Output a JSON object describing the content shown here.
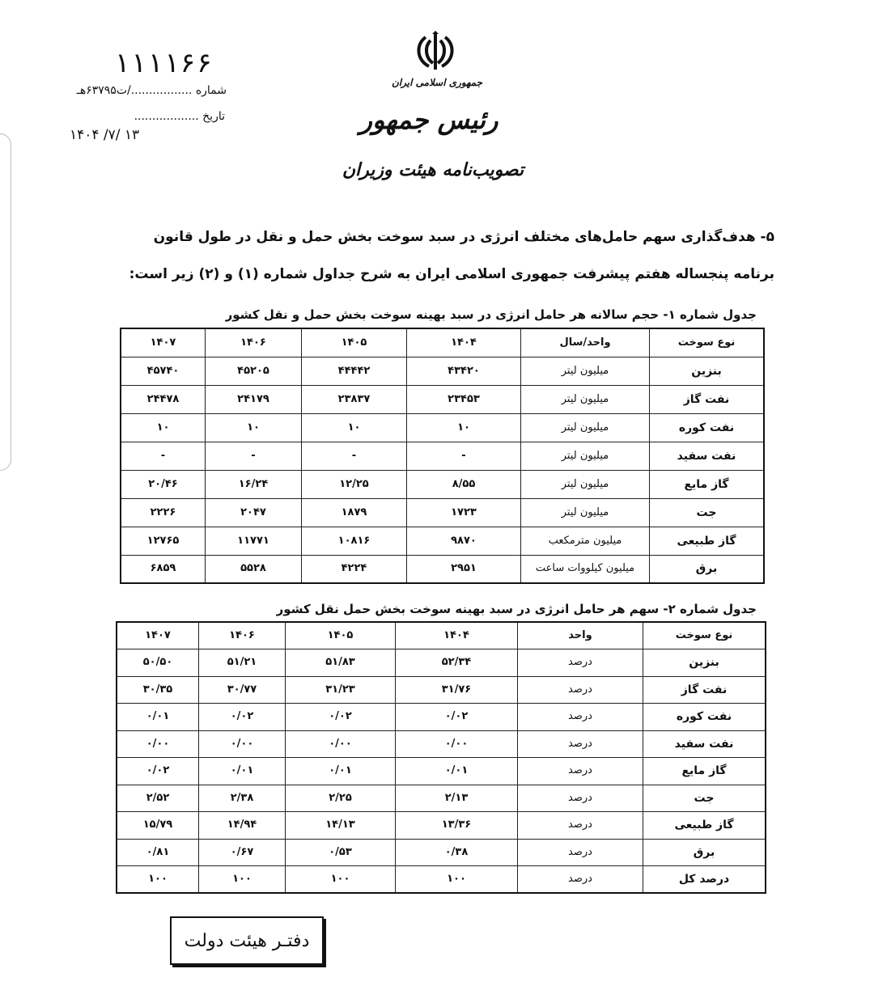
{
  "header": {
    "emblem": "Emblem of Iran",
    "line1": "جمهوری اسلامی ایران",
    "line2": "رئیس جمهور",
    "line3": "تصویب‌نامه هیئت وزیران",
    "number_handwritten": "۱۱۱۱۶۶",
    "number_label": "شماره ................./ت۶۳۷۹۵هـ",
    "date_label": "تاریخ ..................",
    "date_value": "۱۴۰۴ /۷/ ۱۳"
  },
  "body": {
    "para1": "۵- هدف‌گذاری سهم حامل‌های مختلف انرژی در سبد سوخت بخش حمل و نقل در طول قانون",
    "para2": "برنامه پنجساله هفتم پیشرفت جمهوری اسلامی ایران به شرح جداول شماره (۱) و (۲) زیر است:"
  },
  "table1": {
    "title": "جدول شماره ۱- حجم سالانه هر حامل انرژی در سبد بهینه سوخت بخش حمل و نقل کشور",
    "headers": [
      "نوع سوخت",
      "واحد/سال",
      "۱۴۰۴",
      "۱۴۰۵",
      "۱۴۰۶",
      "۱۴۰۷"
    ],
    "rows": [
      [
        "بنزین",
        "میلیون لیتر",
        "۴۳۴۲۰",
        "۴۴۴۴۲",
        "۴۵۲۰۵",
        "۴۵۷۴۰"
      ],
      [
        "نفت گاز",
        "میلیون لیتر",
        "۲۳۴۵۳",
        "۲۳۸۳۷",
        "۲۴۱۷۹",
        "۲۴۴۷۸"
      ],
      [
        "نفت کوره",
        "میلیون لیتر",
        "۱۰",
        "۱۰",
        "۱۰",
        "۱۰"
      ],
      [
        "نفت سفید",
        "میلیون لیتر",
        "-",
        "-",
        "-",
        "-"
      ],
      [
        "گاز مایع",
        "میلیون لیتر",
        "۸/۵۵",
        "۱۲/۲۵",
        "۱۶/۲۴",
        "۲۰/۴۶"
      ],
      [
        "جت",
        "میلیون لیتر",
        "۱۷۲۳",
        "۱۸۷۹",
        "۲۰۴۷",
        "۲۲۲۶"
      ],
      [
        "گاز طبیعی",
        "میلیون مترمکعب",
        "۹۸۷۰",
        "۱۰۸۱۶",
        "۱۱۷۷۱",
        "۱۲۷۶۵"
      ],
      [
        "برق",
        "میلیون کیلووات ساعت",
        "۲۹۵۱",
        "۴۲۲۴",
        "۵۵۲۸",
        "۶۸۵۹"
      ]
    ]
  },
  "table2": {
    "title": "جدول شماره ۲- سهم هر حامل انرژی در سبد بهینه سوخت بخش حمل نقل کشور",
    "headers": [
      "نوع سوخت",
      "واحد",
      "۱۴۰۴",
      "۱۴۰۵",
      "۱۴۰۶",
      "۱۴۰۷"
    ],
    "rows": [
      [
        "بنزین",
        "درصد",
        "۵۲/۳۴",
        "۵۱/۸۳",
        "۵۱/۲۱",
        "۵۰/۵۰"
      ],
      [
        "نفت گاز",
        "درصد",
        "۳۱/۷۶",
        "۳۱/۲۳",
        "۳۰/۷۷",
        "۳۰/۳۵"
      ],
      [
        "نفت کوره",
        "درصد",
        "۰/۰۲",
        "۰/۰۲",
        "۰/۰۲",
        "۰/۰۱"
      ],
      [
        "نفت سفید",
        "درصد",
        "۰/۰۰",
        "۰/۰۰",
        "۰/۰۰",
        "۰/۰۰"
      ],
      [
        "گاز مایع",
        "درصد",
        "۰/۰۱",
        "۰/۰۱",
        "۰/۰۱",
        "۰/۰۲"
      ],
      [
        "جت",
        "درصد",
        "۲/۱۳",
        "۲/۲۵",
        "۲/۳۸",
        "۲/۵۲"
      ],
      [
        "گاز طبیعی",
        "درصد",
        "۱۳/۳۶",
        "۱۴/۱۳",
        "۱۴/۹۴",
        "۱۵/۷۹"
      ],
      [
        "برق",
        "درصد",
        "۰/۳۸",
        "۰/۵۳",
        "۰/۶۷",
        "۰/۸۱"
      ],
      [
        "درصد کل",
        "درصد",
        "۱۰۰",
        "۱۰۰",
        "۱۰۰",
        "۱۰۰"
      ]
    ]
  },
  "stamp": {
    "text": "دفتـر هیئت دولت"
  }
}
